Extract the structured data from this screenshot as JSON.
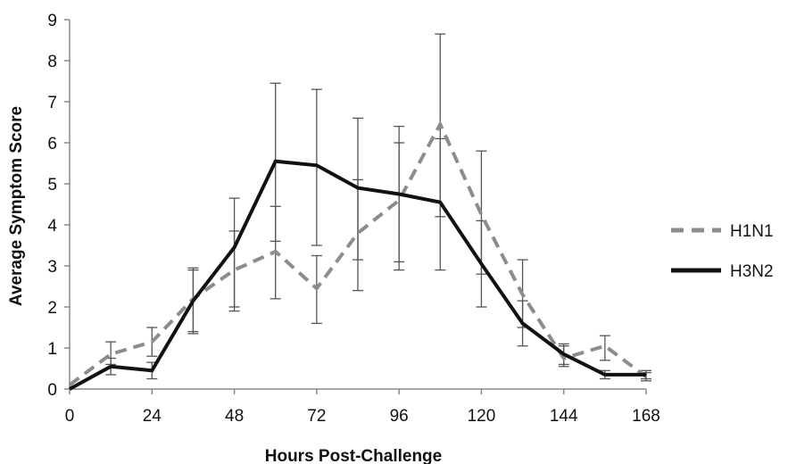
{
  "chart_data": {
    "type": "line",
    "title": "",
    "xlabel": "Hours Post-Challenge",
    "ylabel": "Average Symptom Score",
    "xlim": [
      0,
      168
    ],
    "ylim": [
      0,
      9
    ],
    "x_ticks": [
      "0",
      "24",
      "48",
      "72",
      "96",
      "120",
      "144",
      "168"
    ],
    "y_ticks": [
      "0",
      "1",
      "2",
      "3",
      "4",
      "5",
      "6",
      "7",
      "8",
      "9"
    ],
    "grid": false,
    "legend_position": "right",
    "x": [
      0,
      12,
      24,
      36,
      48,
      60,
      72,
      84,
      96,
      108,
      120,
      132,
      144,
      156,
      168
    ],
    "series": [
      {
        "name": "H1N1",
        "style": "dashed",
        "color": "#8c8c8c",
        "values": [
          0.1,
          0.85,
          1.15,
          2.2,
          2.9,
          3.35,
          2.45,
          3.8,
          4.6,
          6.45,
          4.25,
          2.3,
          0.75,
          1.05,
          0.3
        ],
        "error_low": [
          0.1,
          0.6,
          0.8,
          1.4,
          1.9,
          2.2,
          1.6,
          3.15,
          2.9,
          4.2,
          2.8,
          1.5,
          0.55,
          0.7,
          0.2
        ],
        "error_high": [
          0.1,
          1.15,
          1.5,
          2.95,
          3.85,
          4.45,
          3.25,
          5.1,
          6.4,
          8.65,
          5.8,
          3.15,
          1.05,
          1.3,
          0.4
        ]
      },
      {
        "name": "H3N2",
        "style": "solid",
        "color": "#111111",
        "values": [
          0.0,
          0.55,
          0.45,
          2.15,
          3.45,
          5.55,
          5.45,
          4.9,
          4.75,
          4.55,
          3.05,
          1.6,
          0.85,
          0.35,
          0.35
        ],
        "error_low": [
          0.0,
          0.35,
          0.25,
          1.35,
          2.0,
          3.6,
          3.5,
          2.4,
          3.1,
          2.9,
          2.0,
          1.05,
          0.6,
          0.25,
          0.25
        ],
        "error_high": [
          0.0,
          0.75,
          0.65,
          2.9,
          4.65,
          7.45,
          7.3,
          6.6,
          6.0,
          6.1,
          4.1,
          2.15,
          1.1,
          0.45,
          0.45
        ]
      }
    ]
  }
}
